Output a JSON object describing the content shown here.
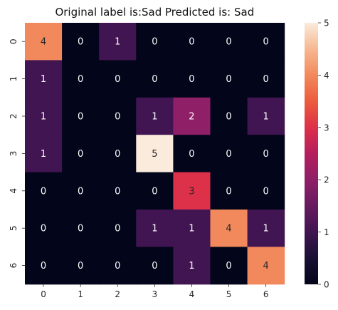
{
  "chart_data": {
    "type": "heatmap",
    "title": "Original label is:Sad Predicted is: Sad",
    "xlabel": "",
    "ylabel": "",
    "x_categories": [
      "0",
      "1",
      "2",
      "3",
      "4",
      "5",
      "6"
    ],
    "y_categories": [
      "0",
      "1",
      "2",
      "3",
      "4",
      "5",
      "6"
    ],
    "matrix": [
      [
        4,
        0,
        1,
        0,
        0,
        0,
        0
      ],
      [
        1,
        0,
        0,
        0,
        0,
        0,
        0
      ],
      [
        1,
        0,
        0,
        1,
        2,
        0,
        1
      ],
      [
        1,
        0,
        0,
        5,
        0,
        0,
        0
      ],
      [
        0,
        0,
        0,
        0,
        3,
        0,
        0
      ],
      [
        0,
        0,
        0,
        1,
        1,
        4,
        1
      ],
      [
        0,
        0,
        0,
        0,
        1,
        0,
        4
      ]
    ],
    "value_range": [
      0,
      5
    ],
    "colorbar_ticks": [
      "0",
      "1",
      "2",
      "3",
      "4",
      "5"
    ],
    "colormap": "rocket",
    "annotated": true,
    "grid": false
  }
}
